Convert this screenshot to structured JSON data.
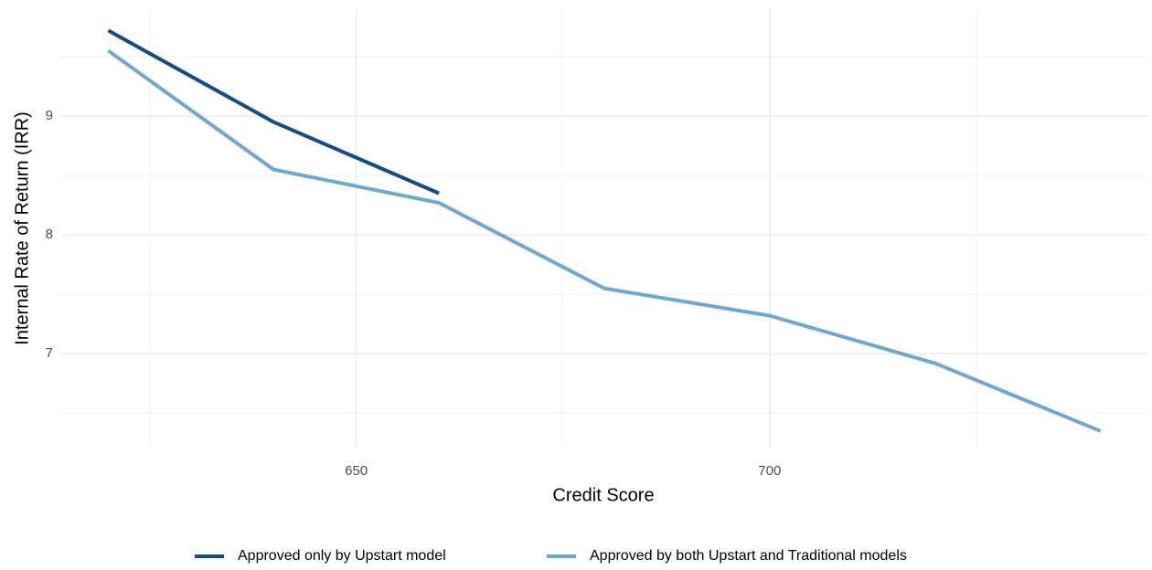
{
  "chart_data": {
    "type": "line",
    "x_label": "Credit Score",
    "y_label": "Internal Rate of Return (IRR)",
    "x": [
      620,
      640,
      660,
      680,
      700,
      720,
      740
    ],
    "series": [
      {
        "name": "Approved only by Upstart model",
        "color": "#154c84",
        "values": [
          9.72,
          8.95,
          8.35,
          null,
          null,
          null,
          null
        ]
      },
      {
        "name": "Approved by both Upstart and Traditional models",
        "color": "#6fa8cf",
        "values": [
          9.55,
          8.55,
          8.27,
          7.55,
          7.32,
          6.92,
          6.35
        ]
      }
    ],
    "xlim": [
      614.2,
      745.7
    ],
    "xticks": [
      650,
      700
    ],
    "ylim": [
      6.21,
      9.9
    ],
    "yticks": [
      7,
      8,
      9
    ],
    "grid": true,
    "legend": "bottom"
  }
}
